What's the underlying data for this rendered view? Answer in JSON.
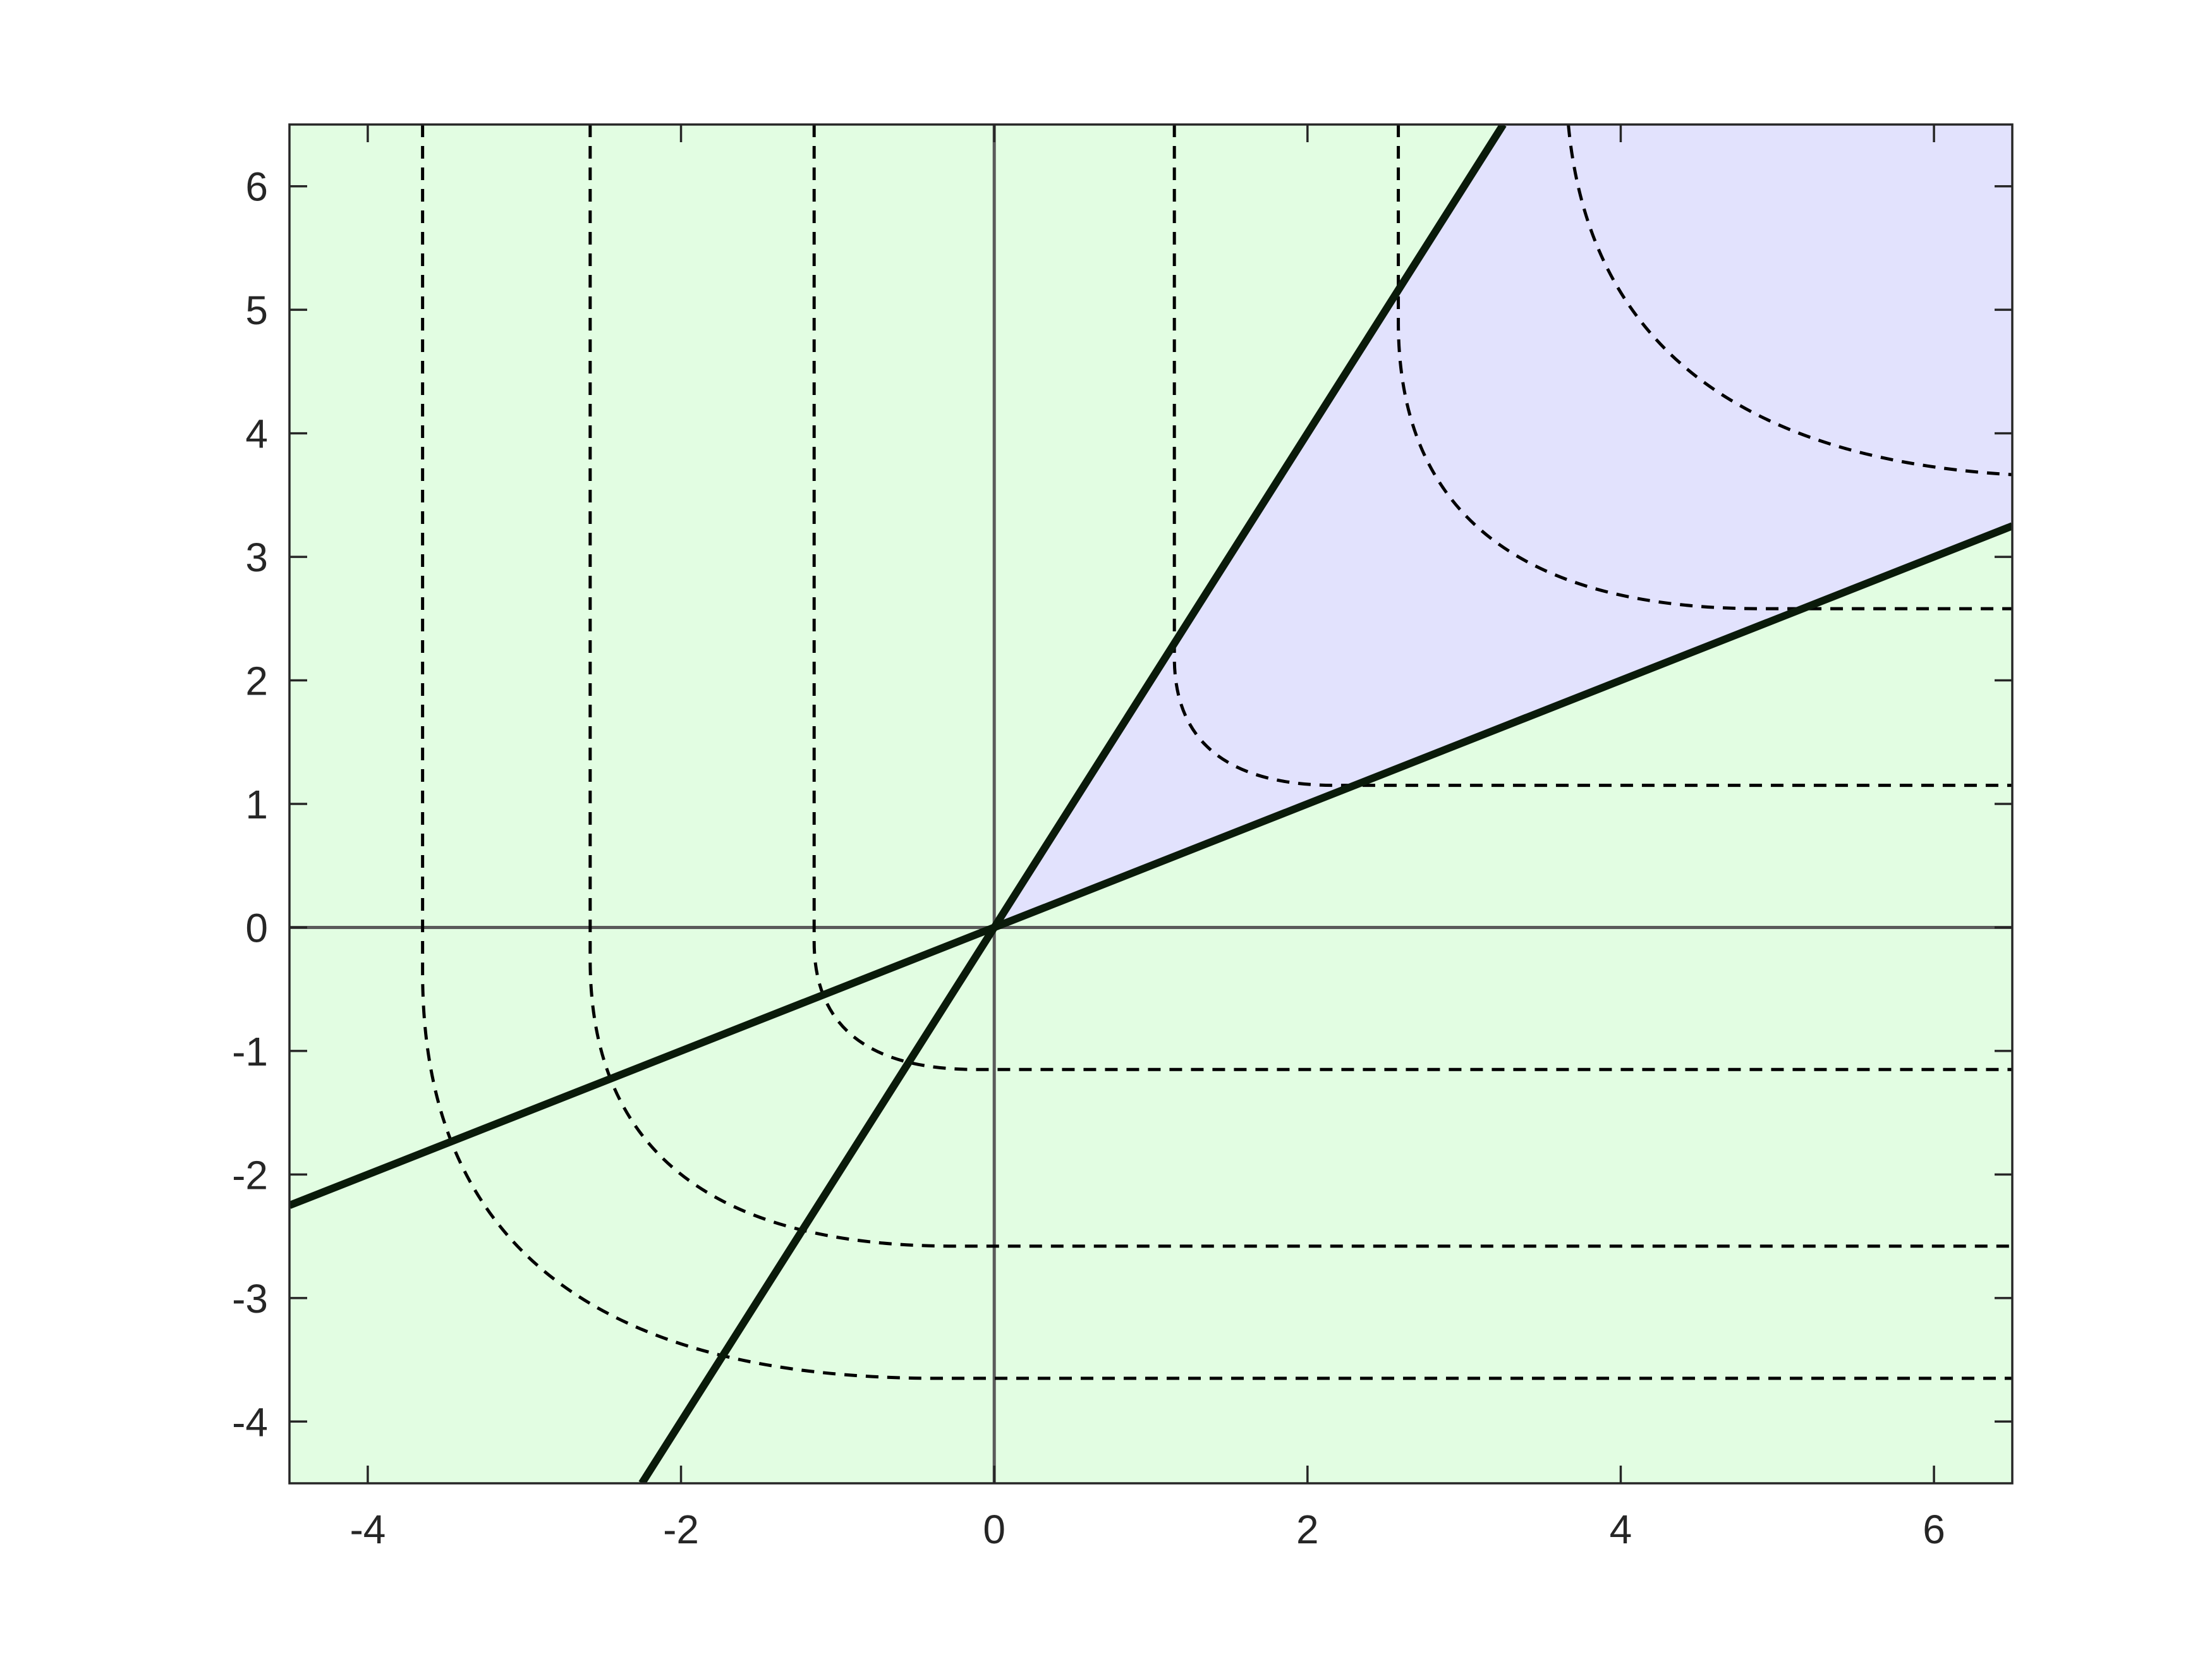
{
  "chart_data": {
    "type": "line",
    "title": "",
    "xlabel": "",
    "ylabel": "",
    "xlim": [
      -4.5,
      6.5
    ],
    "ylim": [
      -4.5,
      6.5
    ],
    "xticks": [
      -4,
      -2,
      0,
      2,
      4,
      6
    ],
    "yticks": [
      -4,
      -3,
      -2,
      -1,
      0,
      1,
      2,
      3,
      4,
      5,
      6
    ],
    "xtick_labels": [
      "-4",
      "-2",
      "0",
      "2",
      "4",
      "6"
    ],
    "ytick_labels": [
      "-4",
      "-3",
      "-2",
      "-1",
      "0",
      "1",
      "2",
      "3",
      "4",
      "5",
      "6"
    ],
    "grid": false,
    "legend": "none",
    "axes_lines": {
      "x0": 0,
      "y0": 0,
      "color": "#5a5a5a"
    },
    "regions": [
      {
        "name": "outside",
        "color": "#e2fde2"
      },
      {
        "name": "cone",
        "color": "#e2e2fd",
        "between": [
          "line-steep",
          "line-shallow"
        ],
        "quadrant": "first"
      }
    ],
    "series": [
      {
        "id": "line-steep",
        "style": "solid",
        "color": "#0a1a0a",
        "x": [
          -2.25,
          3.25
        ],
        "y": [
          -4.5,
          6.5
        ]
      },
      {
        "id": "line-shallow",
        "style": "solid",
        "color": "#0a1a0a",
        "x": [
          -4.5,
          6.5
        ],
        "y": [
          -2.25,
          3.25
        ]
      }
    ],
    "contours": {
      "style": "dashed",
      "color": "#000000",
      "levels": [
        {
          "region": "third",
          "corner": [
            -1.15,
            -1.15
          ]
        },
        {
          "region": "third",
          "corner": [
            -2.58,
            -2.58
          ]
        },
        {
          "region": "third",
          "corner": [
            -3.65,
            -3.65
          ]
        },
        {
          "region": "first",
          "corner": [
            1.15,
            1.15
          ]
        },
        {
          "region": "first",
          "corner": [
            2.58,
            2.58
          ]
        },
        {
          "region": "first",
          "corner": [
            3.65,
            3.65
          ]
        }
      ]
    }
  }
}
